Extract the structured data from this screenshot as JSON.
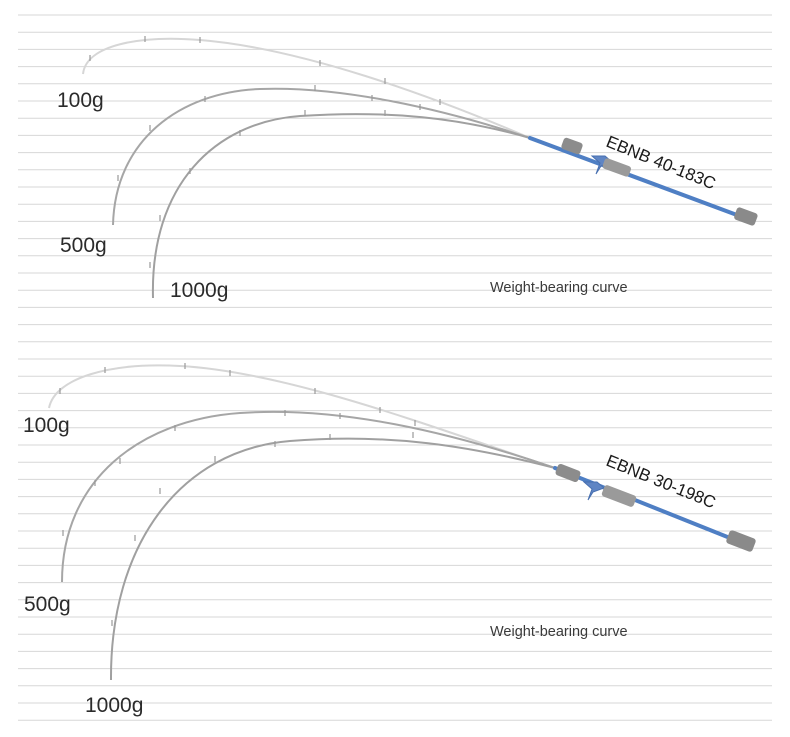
{
  "colors": {
    "background": "#ffffff",
    "rule_line": "#d7d7d7",
    "tip_section": "#d4d4d4",
    "mid_section": "#9a9a9a",
    "blank_blue": "#4f7fc4",
    "grip": "#8c8c8c",
    "text": "#2b2b2b"
  },
  "panels": [
    {
      "model": "EBNB 40-183C",
      "caption": "Weight-bearing curve",
      "curves": [
        {
          "label": "100g"
        },
        {
          "label": "500g"
        },
        {
          "label": "1000g"
        }
      ]
    },
    {
      "model": "EBNB 30-198C",
      "caption": "Weight-bearing curve",
      "curves": [
        {
          "label": "100g"
        },
        {
          "label": "500g"
        },
        {
          "label": "1000g"
        }
      ]
    }
  ]
}
